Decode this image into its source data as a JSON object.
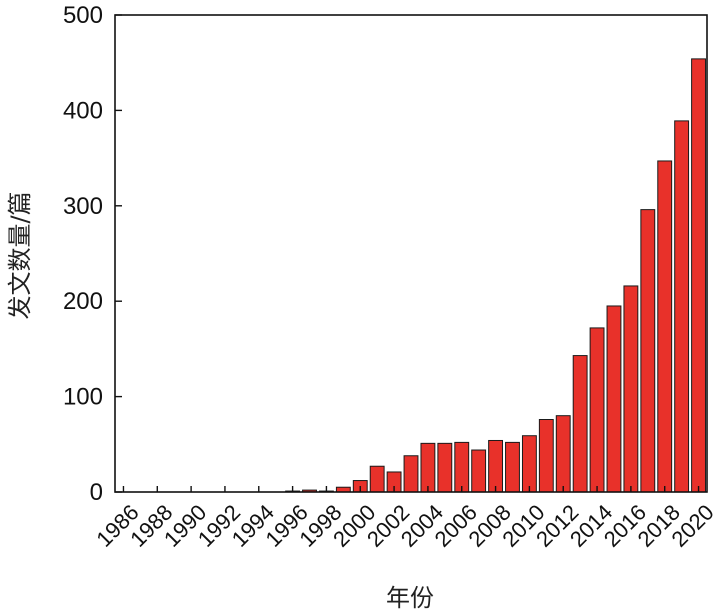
{
  "chart_data": {
    "type": "bar",
    "xlabel": "年份",
    "ylabel": "发文数量/篇",
    "ylim": [
      0,
      500
    ],
    "yticks": [
      0,
      100,
      200,
      300,
      400,
      500
    ],
    "categories": [
      "1986",
      "1987",
      "1988",
      "1989",
      "1990",
      "1991",
      "1992",
      "1993",
      "1994",
      "1995",
      "1996",
      "1997",
      "1998",
      "1999",
      "2000",
      "2001",
      "2002",
      "2003",
      "2004",
      "2005",
      "2006",
      "2007",
      "2008",
      "2009",
      "2010",
      "2011",
      "2012",
      "2013",
      "2014",
      "2015",
      "2016",
      "2017",
      "2018",
      "2019",
      "2020"
    ],
    "tick_labels": [
      "1986",
      "",
      "1988",
      "",
      "1990",
      "",
      "1992",
      "",
      "1994",
      "",
      "1996",
      "",
      "1998",
      "",
      "2000",
      "",
      "2002",
      "",
      "2004",
      "",
      "2006",
      "",
      "2008",
      "",
      "2010",
      "",
      "2012",
      "",
      "2014",
      "",
      "2016",
      "",
      "2018",
      "",
      "2020"
    ],
    "values": [
      0,
      0,
      0,
      0,
      0,
      0,
      0,
      0,
      0,
      0,
      1,
      2,
      1,
      5,
      12,
      27,
      21,
      38,
      51,
      51,
      52,
      44,
      54,
      52,
      59,
      76,
      80,
      143,
      172,
      195,
      216,
      296,
      347,
      389,
      454
    ],
    "bar_color": "#e8312a",
    "grid": false,
    "legend": "none"
  }
}
